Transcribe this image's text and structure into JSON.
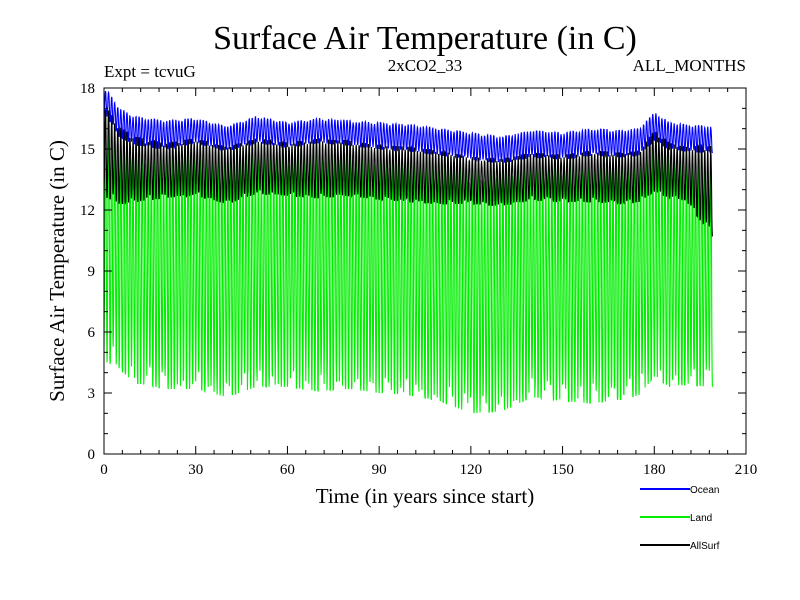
{
  "chart_data": {
    "type": "line",
    "title": "Surface Air Temperature (in C)",
    "subtitle_left": "Expt = tcvuG",
    "subtitle_center": "2xCO2_33",
    "subtitle_right": "ALL_MONTHS",
    "xlabel": "Time (in years since start)",
    "ylabel": "Surface Air Temperature (in C)",
    "xlim": [
      0,
      210
    ],
    "ylim": [
      0,
      18
    ],
    "x_ticks": [
      0,
      30,
      60,
      90,
      120,
      150,
      180,
      210
    ],
    "y_ticks": [
      0,
      3,
      6,
      9,
      12,
      15,
      18
    ],
    "grid": false,
    "legend_position": "bottom-right",
    "x_end": 199,
    "series": [
      {
        "name": "Ocean",
        "color": "#0000ff",
        "x": [
          0,
          1,
          5,
          10,
          20,
          30,
          40,
          50,
          60,
          70,
          80,
          90,
          100,
          110,
          120,
          130,
          140,
          150,
          160,
          170,
          175,
          180,
          185,
          190,
          199
        ],
        "max": [
          17.8,
          17.9,
          17.0,
          16.6,
          16.4,
          16.5,
          16.1,
          16.6,
          16.3,
          16.5,
          16.4,
          16.3,
          16.2,
          16.0,
          15.8,
          15.6,
          15.9,
          15.8,
          16.0,
          15.9,
          16.0,
          16.8,
          16.3,
          16.2,
          16.1
        ],
        "min": [
          16.5,
          16.6,
          15.6,
          15.2,
          15.0,
          15.3,
          14.9,
          15.3,
          15.1,
          15.3,
          15.2,
          15.0,
          14.9,
          14.7,
          14.5,
          14.3,
          14.6,
          14.5,
          14.7,
          14.6,
          14.7,
          15.4,
          15.0,
          14.9,
          14.8
        ]
      },
      {
        "name": "Land",
        "color": "#00ee00",
        "x": [
          0,
          1,
          5,
          10,
          20,
          30,
          40,
          50,
          60,
          70,
          80,
          90,
          100,
          110,
          120,
          130,
          140,
          150,
          160,
          170,
          175,
          180,
          185,
          190,
          199
        ],
        "max": [
          16.5,
          16.6,
          15.8,
          15.2,
          15.0,
          15.3,
          14.9,
          15.3,
          15.1,
          15.3,
          15.2,
          15.0,
          14.9,
          14.7,
          14.3,
          14.2,
          14.6,
          14.4,
          14.7,
          14.6,
          14.6,
          15.6,
          15.0,
          14.8,
          14.9
        ],
        "min": [
          5.3,
          4.5,
          4.2,
          3.5,
          3.2,
          3.2,
          2.8,
          3.3,
          3.3,
          3.1,
          3.2,
          3.0,
          2.9,
          2.6,
          2.0,
          2.1,
          2.8,
          2.6,
          2.5,
          2.7,
          2.9,
          3.8,
          3.3,
          3.4,
          3.3
        ]
      },
      {
        "name": "AllSurf",
        "color": "#000000",
        "x": [
          0,
          1,
          5,
          10,
          20,
          30,
          40,
          50,
          60,
          70,
          80,
          90,
          100,
          110,
          120,
          130,
          140,
          150,
          160,
          170,
          175,
          180,
          185,
          190,
          199
        ],
        "max": [
          16.9,
          17.0,
          16.1,
          15.6,
          15.3,
          15.5,
          15.1,
          15.5,
          15.3,
          15.5,
          15.4,
          15.2,
          15.1,
          14.9,
          14.6,
          14.5,
          14.8,
          14.7,
          14.9,
          14.8,
          14.9,
          15.9,
          15.3,
          15.1,
          15.2
        ],
        "min": [
          12.8,
          12.6,
          12.3,
          12.4,
          12.6,
          12.7,
          12.3,
          12.8,
          12.7,
          12.6,
          12.7,
          12.5,
          12.4,
          12.3,
          12.3,
          12.2,
          12.5,
          12.4,
          12.4,
          12.3,
          12.4,
          12.9,
          12.6,
          12.5,
          10.7
        ]
      }
    ]
  }
}
